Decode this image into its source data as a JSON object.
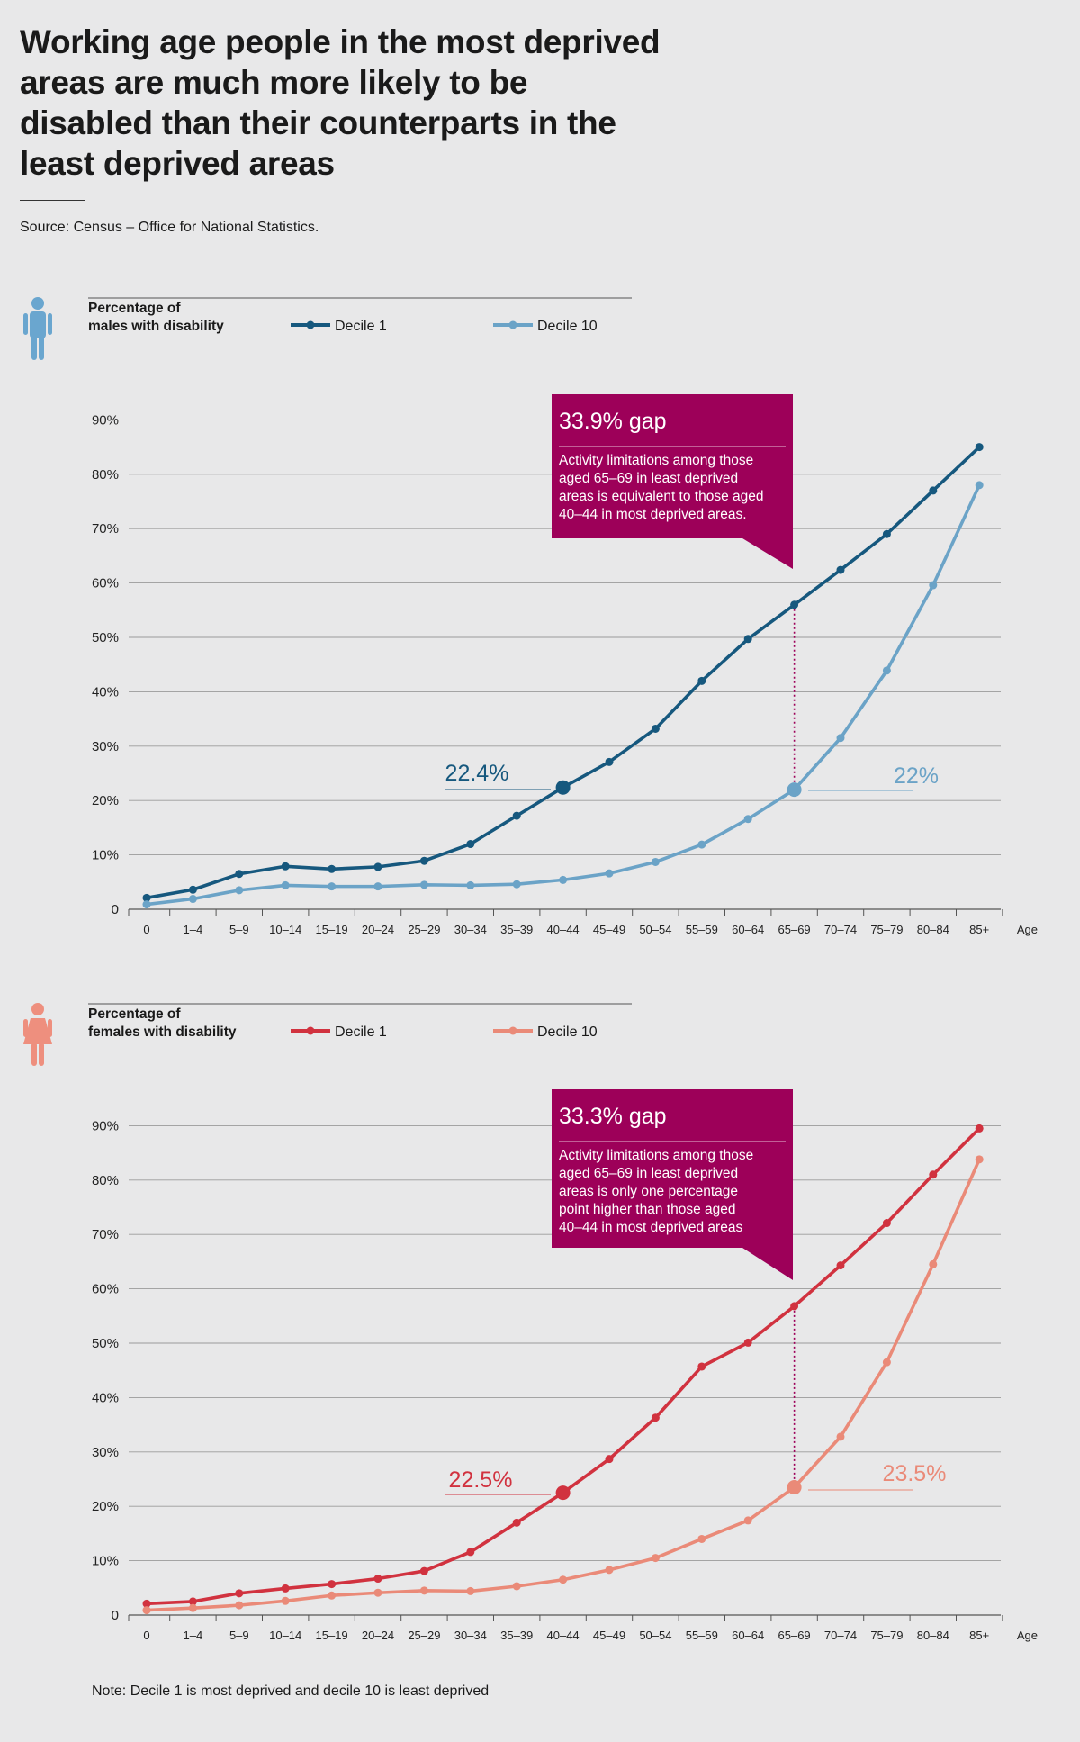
{
  "title": "Working age people in the most deprived areas are much more likely to be disabled than their counterparts in the least deprived areas",
  "source": "Source: Census – Office for National Statistics.",
  "note": "Note: Decile 1 is most deprived and decile 10 is least deprived",
  "colors": {
    "background": "#e8e8e9",
    "male_decile1": "#16587e",
    "male_decile10": "#6ba3c7",
    "female_decile1": "#d1323f",
    "female_decile10": "#ea8a78",
    "gap_box": "#9d0059",
    "male_icon": "#6aa6cf",
    "female_icon": "#ee8f7e"
  },
  "chart_data": [
    {
      "type": "line",
      "legend_title": [
        "Percentage of",
        "males with disability"
      ],
      "icon": "male-person-icon",
      "categories": [
        "0",
        "1–4",
        "5–9",
        "10–14",
        "15–19",
        "20–24",
        "25–29",
        "30–34",
        "35–39",
        "40–44",
        "45–49",
        "50–54",
        "55–59",
        "60–64",
        "65–69",
        "70–74",
        "75–79",
        "80–84",
        "85+"
      ],
      "xlabel": "Age",
      "ylabel": "",
      "ylim": [
        0,
        90
      ],
      "yticks": [
        0,
        10,
        20,
        30,
        40,
        50,
        60,
        70,
        80,
        90
      ],
      "ytick_labels": [
        "0",
        "10%",
        "20%",
        "30%",
        "40%",
        "50%",
        "60%",
        "70%",
        "80%",
        "90%"
      ],
      "grid": true,
      "legend_placement": "top",
      "series": [
        {
          "name": "Decile 1",
          "color": "#16587e",
          "values": [
            2.1,
            3.6,
            6.5,
            7.9,
            7.4,
            7.8,
            8.9,
            12.0,
            17.2,
            22.4,
            27.1,
            33.2,
            42.0,
            49.7,
            56.0,
            62.4,
            69.0,
            77.0,
            85.0
          ]
        },
        {
          "name": "Decile 10",
          "color": "#6ba3c7",
          "values": [
            0.9,
            1.9,
            3.5,
            4.4,
            4.2,
            4.2,
            4.5,
            4.4,
            4.6,
            5.4,
            6.6,
            8.7,
            11.9,
            16.6,
            22.0,
            31.5,
            43.9,
            59.6,
            78.0
          ]
        }
      ],
      "highlights": [
        {
          "series": 0,
          "index": 9,
          "label": "22.4%"
        },
        {
          "series": 1,
          "index": 14,
          "label": "22%"
        }
      ],
      "gap_annotation": {
        "title": "33.9% gap",
        "lines": [
          "Activity limitations among those",
          "aged 65–69 in least deprived",
          "areas is equivalent to those aged",
          "40–44 in most deprived areas."
        ],
        "index": 14
      }
    },
    {
      "type": "line",
      "legend_title": [
        "Percentage of",
        "females with disability"
      ],
      "icon": "female-person-icon",
      "categories": [
        "0",
        "1–4",
        "5–9",
        "10–14",
        "15–19",
        "20–24",
        "25–29",
        "30–34",
        "35–39",
        "40–44",
        "45–49",
        "50–54",
        "55–59",
        "60–64",
        "65–69",
        "70–74",
        "75–79",
        "80–84",
        "85+"
      ],
      "xlabel": "Age",
      "ylabel": "",
      "ylim": [
        0,
        90
      ],
      "yticks": [
        0,
        10,
        20,
        30,
        40,
        50,
        60,
        70,
        80,
        90
      ],
      "ytick_labels": [
        "0",
        "10%",
        "20%",
        "30%",
        "40%",
        "50%",
        "60%",
        "70%",
        "80%",
        "90%"
      ],
      "grid": true,
      "legend_placement": "top",
      "series": [
        {
          "name": "Decile 1",
          "color": "#d1323f",
          "values": [
            2.1,
            2.5,
            4.0,
            4.9,
            5.7,
            6.7,
            8.1,
            11.6,
            17.0,
            22.5,
            28.7,
            36.3,
            45.7,
            50.1,
            56.8,
            64.3,
            72.1,
            81.0,
            89.5
          ]
        },
        {
          "name": "Decile 10",
          "color": "#ea8a78",
          "values": [
            0.9,
            1.3,
            1.8,
            2.6,
            3.6,
            4.1,
            4.5,
            4.4,
            5.3,
            6.5,
            8.3,
            10.5,
            14.0,
            17.4,
            23.5,
            32.8,
            46.5,
            64.5,
            83.8
          ]
        }
      ],
      "highlights": [
        {
          "series": 0,
          "index": 9,
          "label": "22.5%"
        },
        {
          "series": 1,
          "index": 14,
          "label": "23.5%"
        }
      ],
      "gap_annotation": {
        "title": "33.3% gap",
        "lines": [
          "Activity limitations among those",
          "aged 65–69 in least deprived",
          "areas is only one percentage",
          "point higher than those aged",
          "40–44 in most deprived areas"
        ],
        "index": 14
      }
    }
  ]
}
